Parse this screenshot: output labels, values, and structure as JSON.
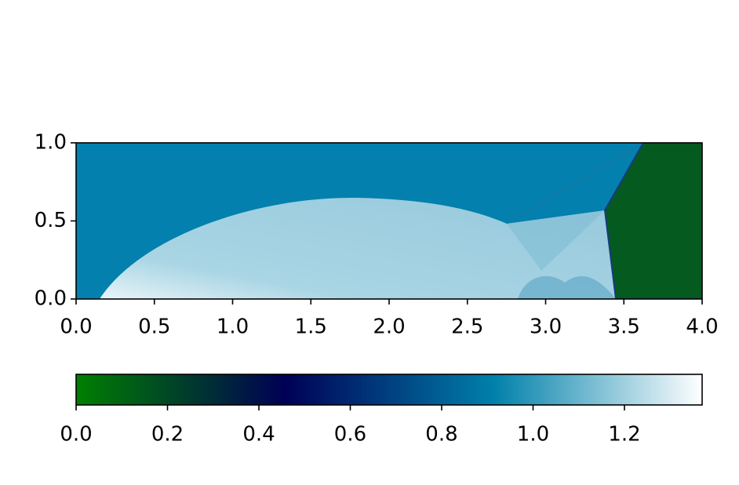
{
  "chart_data": {
    "type": "image",
    "xlim": [
      0,
      4
    ],
    "ylim": [
      0,
      1
    ],
    "xticks": [
      {
        "value": 0,
        "label": "0.0"
      },
      {
        "value": 0.5,
        "label": "0.5"
      },
      {
        "value": 1,
        "label": "1.0"
      },
      {
        "value": 1.5,
        "label": "1.5"
      },
      {
        "value": 2,
        "label": "2.0"
      },
      {
        "value": 2.5,
        "label": "2.5"
      },
      {
        "value": 3,
        "label": "3.0"
      },
      {
        "value": 3.5,
        "label": "3.5"
      },
      {
        "value": 4,
        "label": "4.0"
      }
    ],
    "yticks": [
      {
        "value": 0,
        "label": "0.0"
      },
      {
        "value": 0.5,
        "label": "0.5"
      },
      {
        "value": 1,
        "label": "1.0"
      }
    ],
    "colorbar": {
      "lim": [
        0,
        1.37
      ],
      "ticks": [
        {
          "value": 0,
          "label": "0.0"
        },
        {
          "value": 0.2,
          "label": "0.2"
        },
        {
          "value": 0.4,
          "label": "0.4"
        },
        {
          "value": 0.6,
          "label": "0.6"
        },
        {
          "value": 0.8,
          "label": "0.8"
        },
        {
          "value": 1,
          "label": "1.0"
        },
        {
          "value": 1.2,
          "label": "1.2"
        }
      ],
      "colors": [
        "#008000",
        "#000055",
        "#0080aa",
        "#ffffff"
      ]
    }
  }
}
